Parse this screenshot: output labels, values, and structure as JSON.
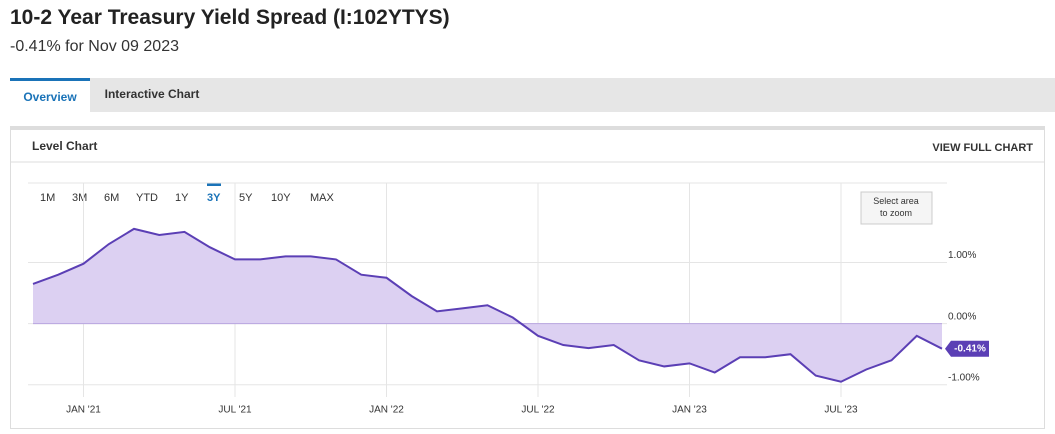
{
  "header": {
    "title": "10-2 Year Treasury Yield Spread (I:102YTYS)",
    "subtitle": "-0.41% for Nov 09 2023"
  },
  "tabs": [
    "Overview",
    "Interactive Chart"
  ],
  "card": {
    "title": "Level Chart",
    "action": "VIEW FULL CHART"
  },
  "range_buttons": {
    "labels": [
      "1M",
      "3M",
      "6M",
      "YTD",
      "1Y",
      "3Y",
      "5Y",
      "10Y",
      "MAX"
    ],
    "active": 5
  },
  "zoom_hint": "Select area to zoom",
  "chart_data": {
    "type": "area",
    "x": [
      "2020-11",
      "2020-12",
      "2021-01",
      "2021-02",
      "2021-03",
      "2021-04",
      "2021-05",
      "2021-06",
      "2021-07",
      "2021-08",
      "2021-09",
      "2021-10",
      "2021-11",
      "2021-12",
      "2022-01",
      "2022-02",
      "2022-03",
      "2022-04",
      "2022-05",
      "2022-06",
      "2022-07",
      "2022-08",
      "2022-09",
      "2022-10",
      "2022-11",
      "2022-12",
      "2023-01",
      "2023-02",
      "2023-03",
      "2023-04",
      "2023-05",
      "2023-06",
      "2023-07",
      "2023-08",
      "2023-09",
      "2023-10",
      "2023-11"
    ],
    "series": [
      {
        "color": "#5b3fb5",
        "values": [
          0.65,
          0.8,
          0.98,
          1.3,
          1.55,
          1.45,
          1.5,
          1.25,
          1.05,
          1.05,
          1.1,
          1.1,
          1.05,
          0.8,
          0.75,
          0.45,
          0.2,
          0.25,
          0.3,
          0.1,
          -0.2,
          -0.35,
          -0.4,
          -0.35,
          -0.6,
          -0.7,
          -0.65,
          -0.8,
          -0.55,
          -0.55,
          -0.5,
          -0.85,
          -0.95,
          -0.75,
          -0.6,
          -0.2,
          -0.41
        ],
        "value_labels": [
          null,
          null,
          null,
          null,
          null,
          null,
          null,
          null,
          null,
          null,
          null,
          null,
          null,
          null,
          null,
          null,
          null,
          null,
          null,
          null,
          null,
          null,
          null,
          null,
          null,
          null,
          null,
          null,
          null,
          null,
          null,
          null,
          null,
          null,
          null,
          null,
          "-0.41%"
        ]
      }
    ],
    "fill": "#dcd0f2",
    "xlim": [
      "2020-11",
      "2023-11"
    ],
    "xticks": [
      {
        "value": "2021-01",
        "label": "JAN '21"
      },
      {
        "value": "2021-07",
        "label": "JUL '21"
      },
      {
        "value": "2022-01",
        "label": "JAN '22"
      },
      {
        "value": "2022-07",
        "label": "JUL '22"
      },
      {
        "value": "2023-01",
        "label": "JAN '23"
      },
      {
        "value": "2023-07",
        "label": "JUL '23"
      }
    ],
    "ylim": [
      -1.2,
      2.3
    ],
    "yticks": [
      {
        "value": -1,
        "label": "-1.00%"
      },
      {
        "value": 0,
        "label": "0.00%"
      },
      {
        "value": 1,
        "label": "1.00%"
      }
    ],
    "grid": true
  }
}
